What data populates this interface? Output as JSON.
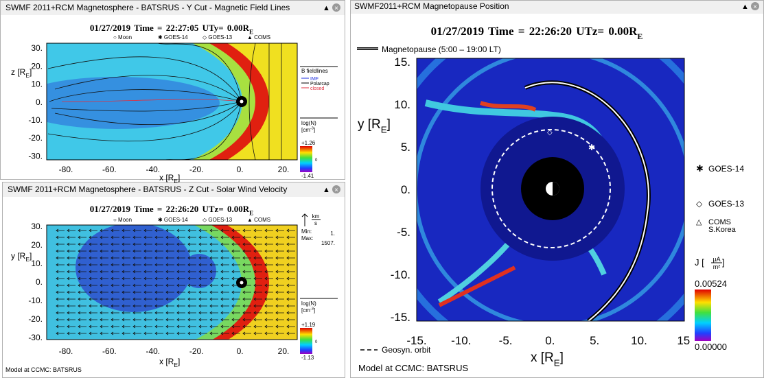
{
  "windows": [
    {
      "title": "SWMF 2011+RCM Magnetosphere - BATSRUS - Y Cut - Magnetic Field Lines",
      "header": {
        "time": "01/27/2019 Time = 22:27:05 UT",
        "cut": "y= 0.00R",
        "sub": "E"
      },
      "legend": [
        "○ Moon",
        "✱ GOES-14",
        "◇ GOES-13",
        "▲ COMS"
      ],
      "yticks": [
        "30.",
        "20.",
        "10.",
        "0.",
        "-10.",
        "-20.",
        "-30."
      ],
      "xticks": [
        "-80.",
        "-60.",
        "-40.",
        "-20.",
        "0.",
        "20."
      ],
      "ylabel": {
        "text": "z [R",
        "sub": "E",
        "end": "]"
      },
      "xlabel": {
        "text": "x [R",
        "sub": "E",
        "end": "]"
      },
      "fieldlines": [
        "B fieldlines",
        "IMF",
        "Polarcap",
        "closed"
      ],
      "colorbar": {
        "title": "log(N)",
        "unit": "[cm",
        "sup": "-3",
        "end": "]",
        "max": "+1.26",
        "mid": "0",
        "min": "-1.41"
      }
    },
    {
      "title": "SWMF 2011+RCM Magnetosphere - BATSRUS - Z Cut - Solar Wind Velocity",
      "header": {
        "time": "01/27/2019 Time = 22:26:20 UT",
        "cut": "z= 0.00R",
        "sub": "E"
      },
      "legend": [
        "○ Moon",
        "✱ GOES-14",
        "◇ GOES-13",
        "▲ COMS"
      ],
      "yticks": [
        "30.",
        "20.",
        "10.",
        "0.",
        "-10.",
        "-20.",
        "-30."
      ],
      "xticks": [
        "-80.",
        "-60.",
        "-40.",
        "-20.",
        "0.",
        "20."
      ],
      "ylabel": {
        "text": "y [R",
        "sub": "E",
        "end": "]"
      },
      "xlabel": {
        "text": "x [R",
        "sub": "E",
        "end": "]"
      },
      "velocity": {
        "num": "km",
        "den": "s",
        "min_label": "Min:",
        "min": "1.",
        "max_label": "Max:",
        "max": "1507."
      },
      "colorbar": {
        "title": "log(N)",
        "unit": "[cm",
        "sup": "-3",
        "end": "]",
        "max": "+1.19",
        "mid": "0",
        "min": "-1.13"
      },
      "footer": "Model at CCMC: BATSRUS"
    },
    {
      "title": "SWMF2011+RCM Magnetopause Position",
      "header": {
        "time": "01/27/2019 Time = 22:26:20 UT",
        "cut": "z= 0.00R",
        "sub": "E"
      },
      "legend": "Magnetopause (5:00 – 19:00 LT)",
      "yticks": [
        "15.",
        "10.",
        "5.",
        "0.",
        "-5.",
        "-10.",
        "-15."
      ],
      "xticks": [
        "-15.",
        "-10.",
        "-5.",
        "0.",
        "5.",
        "10.",
        "15"
      ],
      "ylabel": {
        "text": "y [R",
        "sub": "E",
        "end": "]"
      },
      "xlabel": {
        "text": "x [R",
        "sub": "E",
        "end": "]"
      },
      "satellites": [
        "GOES-14",
        "GOES-13",
        "COMS",
        "S.Korea"
      ],
      "colorbar": {
        "title": "J [",
        "num": "µA",
        "den": "m²",
        "end": "]",
        "max": "0.00524",
        "min": "0.00000"
      },
      "orbit": "Geosyn. orbit",
      "footer": "Model at CCMC: BATSRUS"
    }
  ]
}
